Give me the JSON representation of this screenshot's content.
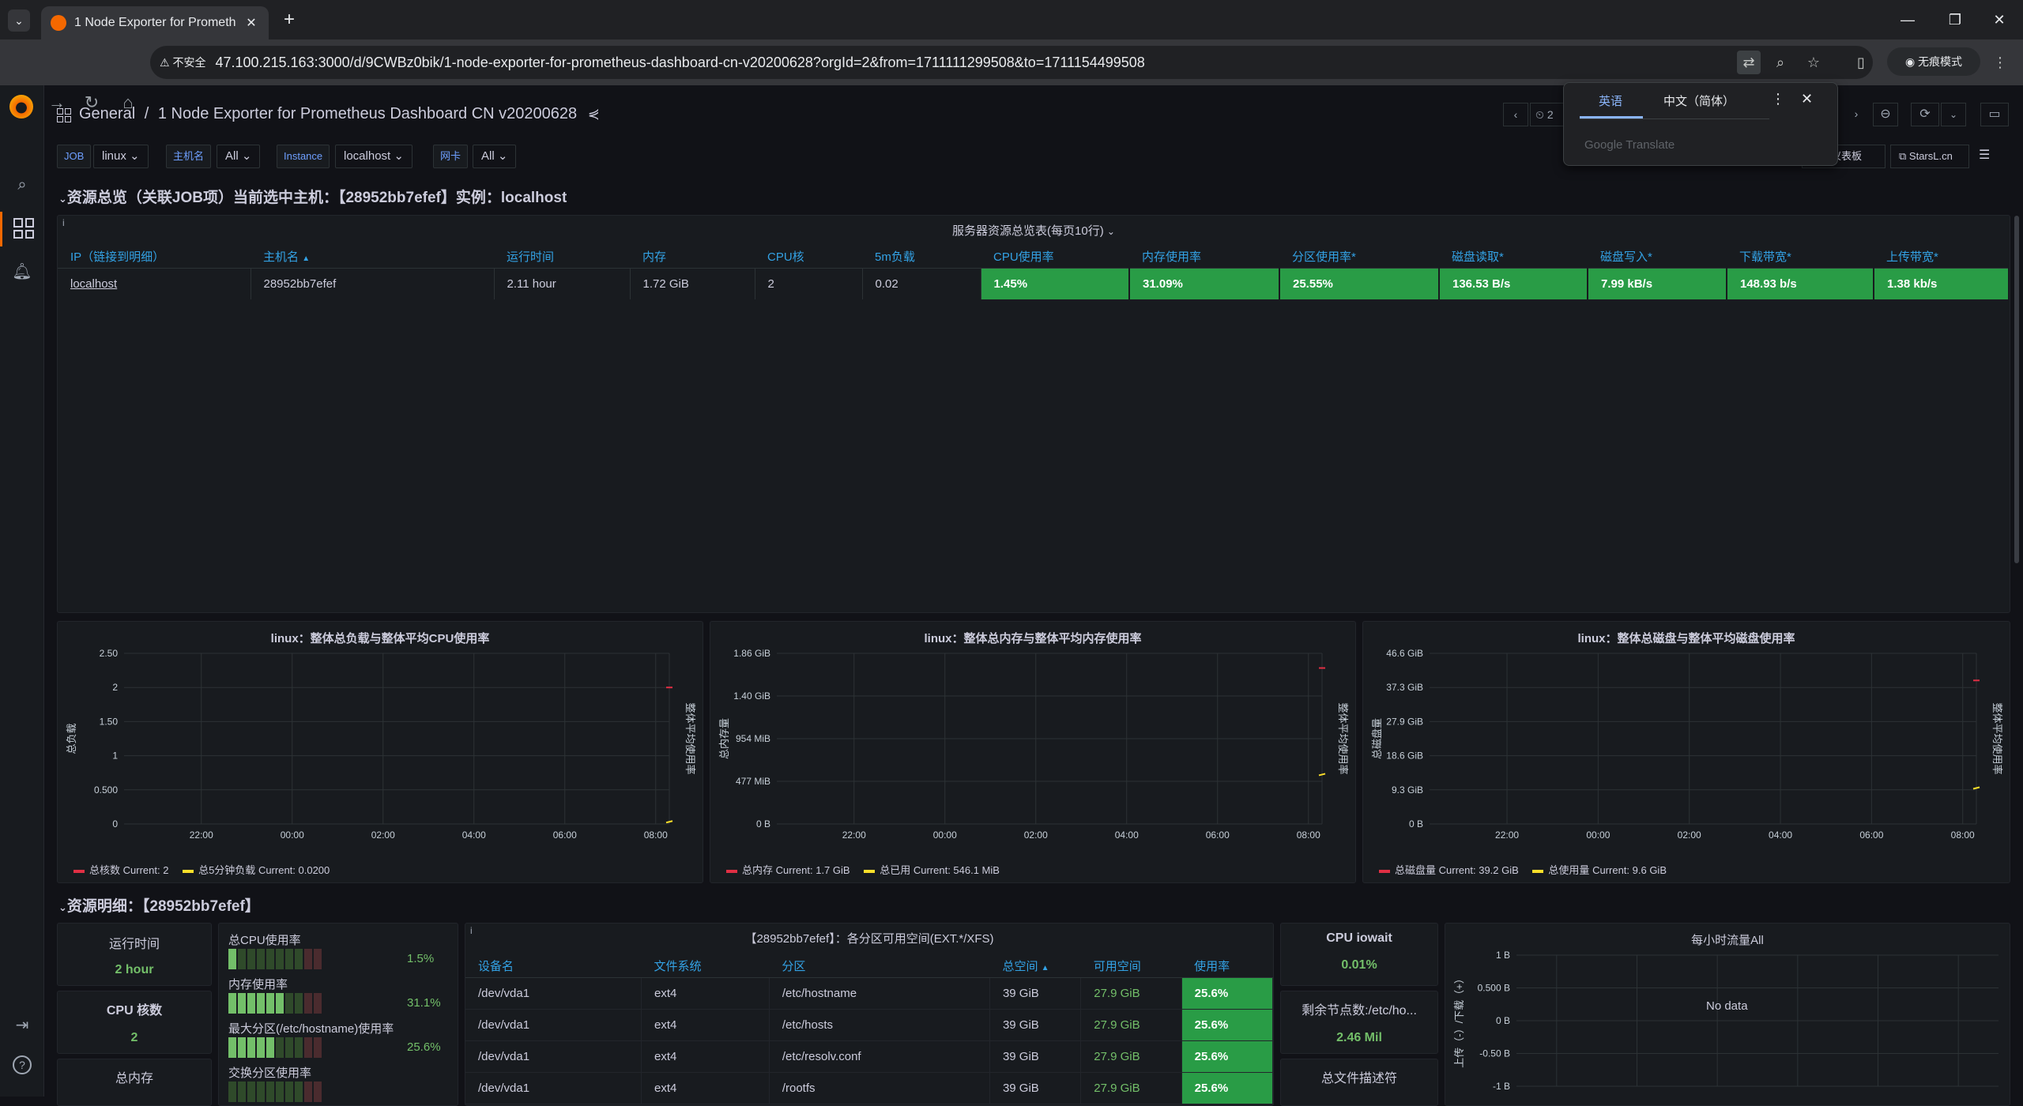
{
  "browser": {
    "tab_title": "1 Node Exporter for Prometh",
    "security_label": "不安全",
    "url": "47.100.215.163:3000/d/9CWBz0bik/1-node-exporter-for-prometheus-dashboard-cn-v20200628?orgId=2&from=1711111299508&to=1711154499508",
    "incognito_label": "无痕模式"
  },
  "translate": {
    "tab_english": "英语",
    "tab_chinese": "中文（简体）",
    "brand": "Google Translate"
  },
  "dashboard": {
    "folder": "General",
    "separator": "/",
    "title": "1 Node Exporter for Prometheus Dashboard CN v20200628",
    "time_partial": "2",
    "link1": "仪表板",
    "link2": "StarsL.cn"
  },
  "variables": [
    {
      "label": "JOB",
      "value": "linux"
    },
    {
      "label": "主机名",
      "value": "All"
    },
    {
      "label": "Instance",
      "value": "localhost"
    },
    {
      "label": "网卡",
      "value": "All"
    }
  ],
  "row1_title": "资源总览（关联JOB项）当前选中主机：【28952bb7efef】实例：localhost",
  "overview_table": {
    "title": "服务器资源总览表(每页10行)",
    "columns": [
      "IP（链接到明细）",
      "主机名",
      "运行时间",
      "内存",
      "CPU核",
      "5m负载",
      "CPU使用率",
      "内存使用率",
      "分区使用率*",
      "磁盘读取*",
      "磁盘写入*",
      "下载带宽*",
      "上传带宽*"
    ],
    "sort_indicator": "▲",
    "rows": [
      [
        "localhost",
        "28952bb7efef",
        "2.11 hour",
        "1.72 GiB",
        "2",
        "0.02",
        "1.45%",
        "31.09%",
        "25.55%",
        "136.53 B/s",
        "7.99 kB/s",
        "148.93 b/s",
        "1.38 kb/s"
      ]
    ]
  },
  "chart_data": [
    {
      "type": "line",
      "title": "linux：整体总负载与整体平均CPU使用率",
      "ylabel": "总负载",
      "y2label": "整体平均使用率",
      "x": [
        "22:00",
        "00:00",
        "02:00",
        "04:00",
        "06:00",
        "08:00"
      ],
      "y_ticks": [
        "2.50",
        "2",
        "1.50",
        "1",
        "0.500",
        "0"
      ],
      "ylim": [
        0,
        2.5
      ],
      "series": [
        {
          "name": "总核数",
          "color": "#e02f44",
          "current": "Current: 2",
          "points": [
            [
              8.3,
              2
            ]
          ]
        },
        {
          "name": "总5分钟负载",
          "color": "#fade2a",
          "current": "Current: 0.0200",
          "points": [
            [
              8.3,
              0.02
            ]
          ]
        }
      ]
    },
    {
      "type": "line",
      "title": "linux：整体总内存与整体平均内存使用率",
      "ylabel": "总内存量",
      "y2label": "整体平均使用率",
      "x": [
        "22:00",
        "00:00",
        "02:00",
        "04:00",
        "06:00",
        "08:00"
      ],
      "y_ticks": [
        "1.86 GiB",
        "1.40 GiB",
        "954 MiB",
        "477 MiB",
        "0 B"
      ],
      "ylim": [
        0,
        1.86
      ],
      "series": [
        {
          "name": "总内存",
          "color": "#e02f44",
          "current": "Current: 1.7 GiB",
          "points": [
            [
              8.3,
              1.7
            ]
          ]
        },
        {
          "name": "总已用",
          "color": "#fade2a",
          "current": "Current: 546.1 MiB",
          "points": [
            [
              8.3,
              0.53
            ]
          ]
        }
      ]
    },
    {
      "type": "line",
      "title": "linux：整体总磁盘与整体平均磁盘使用率",
      "ylabel": "总磁盘量",
      "y2label": "整体平均使用率",
      "x": [
        "22:00",
        "00:00",
        "02:00",
        "04:00",
        "06:00",
        "08:00"
      ],
      "y_ticks": [
        "46.6 GiB",
        "37.3 GiB",
        "27.9 GiB",
        "18.6 GiB",
        "9.3 GiB",
        "0 B"
      ],
      "ylim": [
        0,
        46.6
      ],
      "series": [
        {
          "name": "总磁盘量",
          "color": "#e02f44",
          "current": "Current: 39.2 GiB",
          "points": [
            [
              8.3,
              39.2
            ]
          ]
        },
        {
          "name": "总使用量",
          "color": "#fade2a",
          "current": "Current: 9.6 GiB",
          "points": [
            [
              8.3,
              9.6
            ]
          ]
        }
      ]
    },
    {
      "type": "line",
      "title": "每小时流量All",
      "ylabel": "上传（-）/下载（+）",
      "y_ticks": [
        "1 B",
        "0.500 B",
        "0 B",
        "-0.50 B",
        "-1 B"
      ],
      "ylim": [
        -1,
        1
      ],
      "no_data": "No data",
      "series": []
    }
  ],
  "row2_title": "资源明细：【28952bb7efef】",
  "stats": {
    "uptime": {
      "title": "运行时间",
      "value": "2 hour"
    },
    "cpu_cores": {
      "title": "CPU 核数",
      "value": "2"
    },
    "total_mem": {
      "title": "总内存"
    },
    "iowait": {
      "title": "CPU iowait",
      "value": "0.01%"
    },
    "inodes": {
      "title": "剩余节点数:/etc/ho...",
      "value": "2.46 Mil"
    },
    "fd": {
      "title": "总文件描述符"
    }
  },
  "bargauges": [
    {
      "label": "总CPU使用率",
      "value": "1.5%",
      "fraction": 0.015
    },
    {
      "label": "内存使用率",
      "value": "31.1%",
      "fraction": 0.311
    },
    {
      "label": "最大分区(/etc/hostname)使用率",
      "value": "25.6%",
      "fraction": 0.256
    },
    {
      "label": "交换分区使用率",
      "value": "",
      "fraction": 0
    }
  ],
  "partition_table": {
    "title": "【28952bb7efef】：各分区可用空间(EXT.*/XFS)",
    "columns": [
      "设备名",
      "文件系统",
      "分区",
      "总空间",
      "可用空间",
      "使用率"
    ],
    "rows": [
      [
        "/dev/vda1",
        "ext4",
        "/etc/hostname",
        "39 GiB",
        "27.9 GiB",
        "25.6%"
      ],
      [
        "/dev/vda1",
        "ext4",
        "/etc/hosts",
        "39 GiB",
        "27.9 GiB",
        "25.6%"
      ],
      [
        "/dev/vda1",
        "ext4",
        "/etc/resolv.conf",
        "39 GiB",
        "27.9 GiB",
        "25.6%"
      ],
      [
        "/dev/vda1",
        "ext4",
        "/rootfs",
        "39 GiB",
        "27.9 GiB",
        "25.6%"
      ]
    ]
  }
}
